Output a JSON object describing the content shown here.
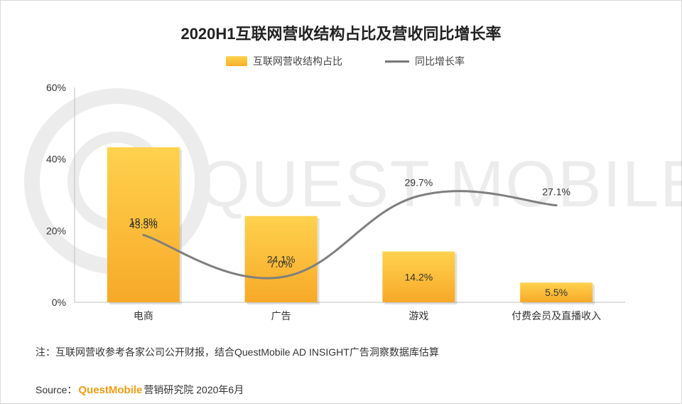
{
  "title": "2020H1互联网营收结构占比及营收同比增长率",
  "legend": {
    "bar_label": "互联网营收结构占比",
    "line_label": "同比增长率"
  },
  "watermark": "QUEST MOBILE",
  "note": "注：互联网营收参考各家公司公开财报，结合QuestMobile AD INSIGHT广告洞察数据库估算",
  "source": {
    "prefix": "Source：",
    "brand": "QuestMobile",
    "suffix": "营销研究院 2020年6月"
  },
  "colors": {
    "bar_top": "#ffd24d",
    "bar_bottom": "#f7a928",
    "line": "#7f7f7f",
    "axis": "#bfbfbf"
  },
  "chart_data": {
    "type": "bar+line",
    "categories": [
      "电商",
      "广告",
      "游戏",
      "付费会员及直播收入"
    ],
    "series": [
      {
        "name": "互联网营收结构占比",
        "type": "bar",
        "values": [
          43.3,
          24.1,
          14.2,
          5.5
        ],
        "labels": [
          "43.3%",
          "24.1%",
          "14.2%",
          "5.5%"
        ]
      },
      {
        "name": "同比增长率",
        "type": "line",
        "values": [
          18.8,
          7.0,
          29.7,
          27.1
        ],
        "labels": [
          "18.8%",
          "7.0%",
          "29.7%",
          "27.1%"
        ]
      }
    ],
    "y_ticks": [
      "0%",
      "20%",
      "40%",
      "60%"
    ],
    "ylim": [
      0,
      60
    ]
  }
}
